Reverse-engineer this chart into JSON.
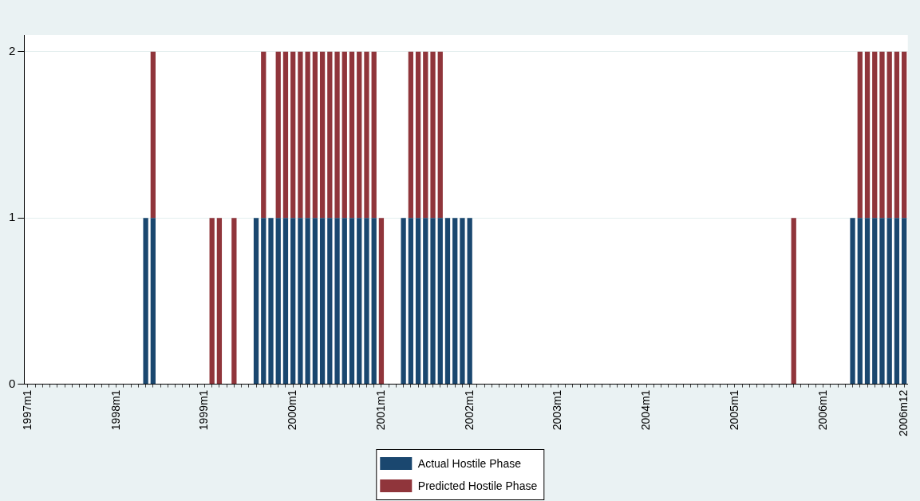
{
  "chart_data": {
    "type": "bar",
    "stacked": true,
    "categories": [
      "1997m1",
      null,
      null,
      null,
      null,
      null,
      null,
      null,
      null,
      null,
      null,
      null,
      "1998m1",
      null,
      null,
      null,
      null,
      null,
      null,
      null,
      null,
      null,
      null,
      null,
      "1999m1",
      null,
      null,
      null,
      null,
      null,
      null,
      null,
      null,
      null,
      null,
      null,
      "2000m1",
      null,
      null,
      null,
      null,
      null,
      null,
      null,
      null,
      null,
      null,
      null,
      "2001m1",
      null,
      null,
      null,
      null,
      null,
      null,
      null,
      null,
      null,
      null,
      null,
      "2002m1",
      null,
      null,
      null,
      null,
      null,
      null,
      null,
      null,
      null,
      null,
      null,
      "2003m1",
      null,
      null,
      null,
      null,
      null,
      null,
      null,
      null,
      null,
      null,
      null,
      "2004m1",
      null,
      null,
      null,
      null,
      null,
      null,
      null,
      null,
      null,
      null,
      null,
      "2005m1",
      null,
      null,
      null,
      null,
      null,
      null,
      null,
      null,
      null,
      null,
      null,
      "2006m1",
      null,
      null,
      null,
      null,
      null,
      null,
      null,
      null,
      null,
      null,
      "2006m12"
    ],
    "series": [
      {
        "name": "Actual Hostile Phase",
        "color": "#1a476f",
        "values": [
          0,
          0,
          0,
          0,
          0,
          0,
          0,
          0,
          0,
          0,
          0,
          0,
          0,
          0,
          0,
          0,
          1,
          1,
          0,
          0,
          0,
          0,
          0,
          0,
          0,
          0,
          0,
          0,
          0,
          0,
          0,
          1,
          1,
          1,
          1,
          1,
          1,
          1,
          1,
          1,
          1,
          1,
          1,
          1,
          1,
          1,
          1,
          1,
          0,
          0,
          0,
          1,
          1,
          1,
          1,
          1,
          1,
          1,
          1,
          1,
          1,
          0,
          0,
          0,
          0,
          0,
          0,
          0,
          0,
          0,
          0,
          0,
          0,
          0,
          0,
          0,
          0,
          0,
          0,
          0,
          0,
          0,
          0,
          0,
          0,
          0,
          0,
          0,
          0,
          0,
          0,
          0,
          0,
          0,
          0,
          0,
          0,
          0,
          0,
          0,
          0,
          0,
          0,
          0,
          0,
          0,
          0,
          0,
          0,
          0,
          0,
          0,
          1,
          1,
          1,
          1,
          1,
          1,
          1,
          1
        ]
      },
      {
        "name": "Predicted Hostile Phase",
        "color": "#90353b",
        "values": [
          0,
          0,
          0,
          0,
          0,
          0,
          0,
          0,
          0,
          0,
          0,
          0,
          0,
          0,
          0,
          0,
          0,
          1,
          0,
          0,
          0,
          0,
          0,
          0,
          0,
          1,
          1,
          0,
          1,
          0,
          0,
          0,
          1,
          0,
          1,
          1,
          1,
          1,
          1,
          1,
          1,
          1,
          1,
          1,
          1,
          1,
          1,
          1,
          1,
          0,
          0,
          0,
          1,
          1,
          1,
          1,
          1,
          0,
          0,
          0,
          0,
          0,
          0,
          0,
          0,
          0,
          0,
          0,
          0,
          0,
          0,
          0,
          0,
          0,
          0,
          0,
          0,
          0,
          0,
          0,
          0,
          0,
          0,
          0,
          0,
          0,
          0,
          0,
          0,
          0,
          0,
          0,
          0,
          0,
          0,
          0,
          0,
          0,
          0,
          0,
          0,
          0,
          0,
          0,
          1,
          0,
          0,
          0,
          0,
          0,
          0,
          0,
          0,
          1,
          1,
          1,
          1,
          1,
          1,
          1
        ]
      }
    ],
    "ylim": [
      0,
      2.1
    ],
    "yticks": [
      0,
      1,
      2
    ],
    "grid": "y",
    "legend": "bottom"
  }
}
